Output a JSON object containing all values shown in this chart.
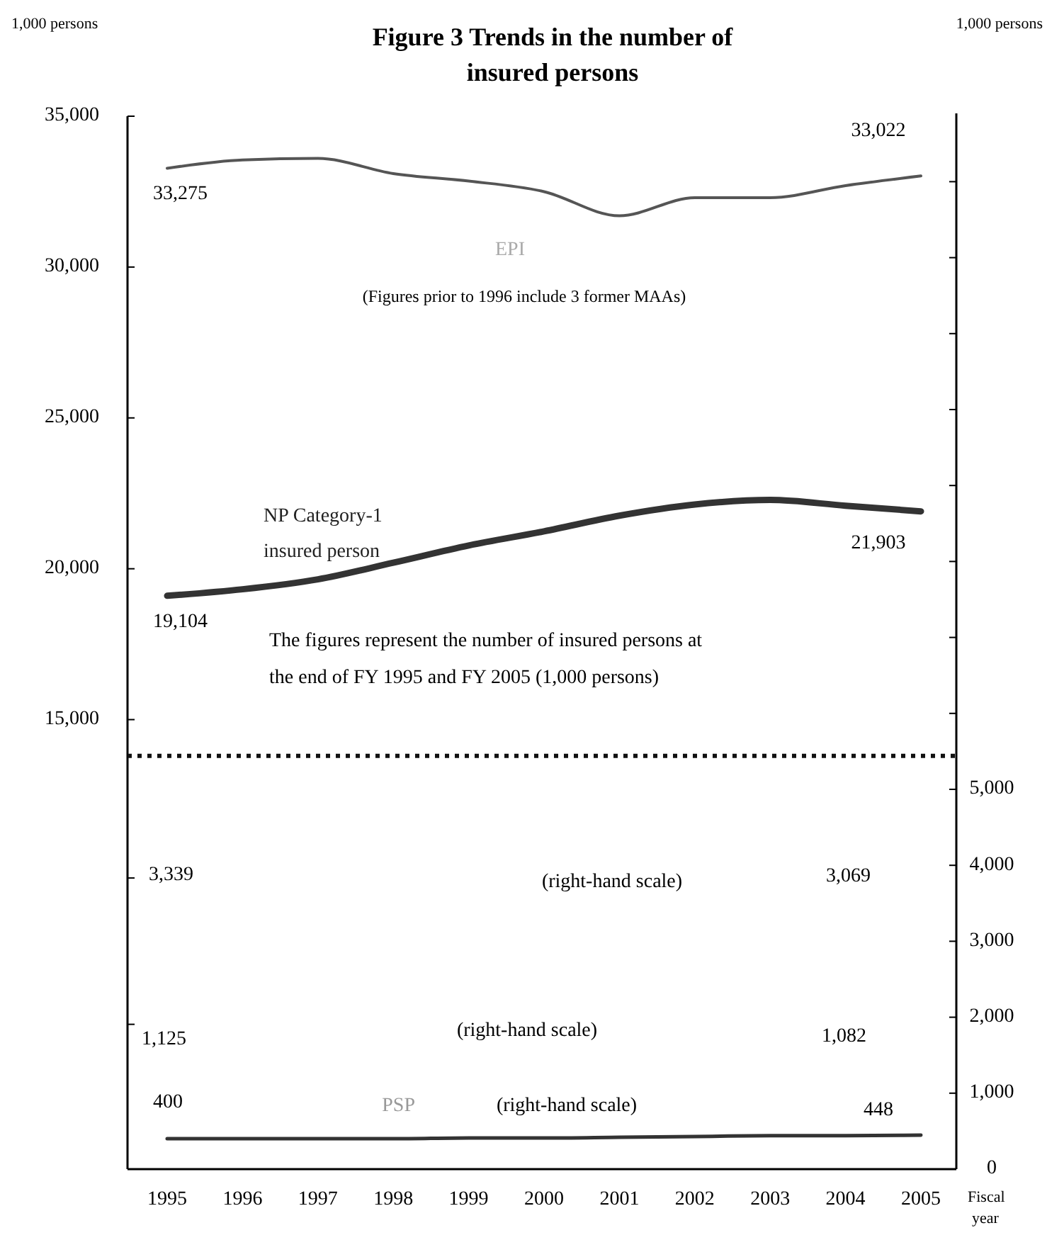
{
  "chart_data": {
    "type": "line",
    "title": "Figure 3  Trends in the number of insured persons",
    "ylabel": "1,000 persons",
    "y2label": "1,000 persons",
    "xlabel": "Fiscal year",
    "categories": [
      "1995",
      "1996",
      "1997",
      "1998",
      "1999",
      "2000",
      "2001",
      "2002",
      "2003",
      "2004",
      "2005"
    ],
    "series": [
      {
        "name": "EPI",
        "color": "#555555",
        "values": [
          33275,
          33550,
          33600,
          33100,
          32850,
          32500,
          31700,
          32300,
          32300,
          32700,
          33022
        ],
        "value_labels": [
          "33,275",
          null,
          null,
          null,
          null,
          null,
          null,
          null,
          null,
          null,
          "33,022"
        ]
      },
      {
        "name": "NP Category-1 insured person",
        "color": "#333333",
        "values": [
          19104,
          19320,
          19650,
          20200,
          20770,
          21240,
          21760,
          22130,
          22280,
          22090,
          21903
        ],
        "value_labels": [
          "19,104",
          null,
          null,
          null,
          null,
          null,
          null,
          null,
          null,
          null,
          "21,903"
        ]
      },
      {
        "name": "PSP",
        "color": "#333333",
        "axis": "y2",
        "values": [
          400,
          400,
          400,
          400,
          410,
          410,
          420,
          430,
          440,
          440,
          448
        ],
        "value_labels": [
          "400",
          null,
          null,
          null,
          null,
          null,
          null,
          null,
          null,
          null,
          "448"
        ]
      }
    ],
    "ylim": [
      100,
      35000
    ],
    "yticks": [
      {
        "value": 4900,
        "label": null
      },
      {
        "value": 9750,
        "label": null
      },
      {
        "value": 15000,
        "label": "15,000"
      },
      {
        "value": 20000,
        "label": "20,000"
      },
      {
        "value": 25000,
        "label": "25,000"
      },
      {
        "value": 30000,
        "label": "30,000"
      },
      {
        "value": 35000,
        "label": "35,000"
      }
    ],
    "y2lim": [
      0,
      13900
    ],
    "y2ticks": [
      0,
      {
        "value": 1000,
        "label": "1,000"
      },
      {
        "value": 2000,
        "label": "2,000"
      },
      {
        "value": 3000,
        "label": "3,000"
      },
      {
        "value": 4000,
        "label": "4,000"
      },
      {
        "value": 5000,
        "label": "5,000"
      },
      {
        "value": 6000,
        "label": null
      },
      {
        "value": 7000,
        "label": null
      },
      {
        "value": 8000,
        "label": null
      },
      {
        "value": 9000,
        "label": null
      },
      {
        "value": 10000,
        "label": null
      },
      {
        "value": 11000,
        "label": null
      },
      {
        "value": 12000,
        "label": null
      },
      {
        "value": 13000,
        "label": null
      }
    ],
    "ref_lines": [
      {
        "axis": "y",
        "value": 13800,
        "line_style": "dotted",
        "color": "#111111"
      }
    ],
    "annotations": [
      "(Figures prior to 1996 include 3 former MAAs)",
      "The figures represent the number of insured persons at the end of FY 1995 and FY 2005 (1,000 persons)",
      "3,339",
      "(right-hand scale)",
      "3,069",
      "1,125",
      "(right-hand scale)",
      "1,082",
      "(right-hand scale)"
    ]
  }
}
